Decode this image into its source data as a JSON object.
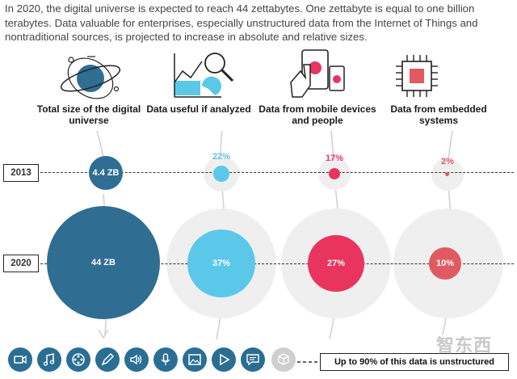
{
  "intro": "In 2020, the digital universe is expected to reach 44 zettabytes. One zettabyte is equal to one billion terabytes. Data valuable for enterprises, especially unstructured data from the Internet of Things and nontraditional sources, is projected to increase in absolute and relative sizes.",
  "columns": [
    {
      "title": "Total size of the digital universe",
      "icon": "globe-orbit-icon"
    },
    {
      "title": "Data useful if analyzed",
      "icon": "chart-magnifier-icon"
    },
    {
      "title": "Data from mobile devices and people",
      "icon": "mobile-touch-icon"
    },
    {
      "title": "Data from embedded systems",
      "icon": "chip-icon"
    }
  ],
  "rows": {
    "y2013": "2013",
    "y2020": "2020"
  },
  "values": {
    "total_2013": "4.4 ZB",
    "total_2020": "44 ZB",
    "useful_2013": "22%",
    "useful_2020": "37%",
    "mobile_2013": "17%",
    "mobile_2020": "27%",
    "embedded_2013": "2%",
    "embedded_2020": "10%"
  },
  "colors": {
    "total": "#2f6e92",
    "useful": "#5bc8ea",
    "mobile": "#e8345f",
    "embedded": "#e05a62"
  },
  "media_icons": [
    "video-icon",
    "music-icon",
    "film-reel-icon",
    "pen-icon",
    "speaker-icon",
    "microphone-icon",
    "image-icon",
    "play-icon",
    "chat-icon",
    "cube-icon"
  ],
  "footer_note": "Up to 90% of this data is unstructured",
  "watermark": "智东西"
}
